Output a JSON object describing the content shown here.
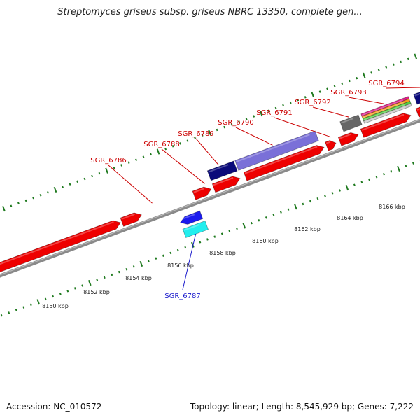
{
  "title": "Streptomyces griseus subsp. griseus NBRC 13350, complete gen...",
  "footer": {
    "accession": "Accession: NC_010572",
    "summary": "Topology: linear; Length: 8,545,929 bp; Genes: 7,222"
  },
  "colors": {
    "background": "#ffffff",
    "backbone": "#8a8a8a",
    "forward_gene": "#ee0000",
    "reverse_gene": "#1a1aee",
    "gene_label_forward": "#cc0000",
    "gene_label_reverse": "#1a1acc",
    "tick": "#1f7a1f",
    "navy_feature": "#0a0a7a",
    "lavender_feature": "#7a70d8",
    "gray_feature": "#666666",
    "cyan_feature": "#22eeee",
    "stripe_magenta": "#dd2288",
    "stripe_orange": "#f59a1e",
    "stripe_green": "#55cc44",
    "stripe_lightgray": "#c8c8c8"
  },
  "scale_labels": [
    "8150 kbp",
    "8152 kbp",
    "8154 kbp",
    "8156 kbp",
    "8158 kbp",
    "8160 kbp",
    "8162 kbp",
    "8164 kbp",
    "8166 kbp"
  ],
  "gene_labels": {
    "SGR_6786": "SGR_6786",
    "SGR_6787": "SGR_6787",
    "SGR_6788": "SGR_6788",
    "SGR_6789": "SGR_6789",
    "SGR_6790": "SGR_6790",
    "SGR_6791": "SGR_6791",
    "SGR_6792": "SGR_6792",
    "SGR_6793": "SGR_6793",
    "SGR_6794": "SGR_6794"
  }
}
